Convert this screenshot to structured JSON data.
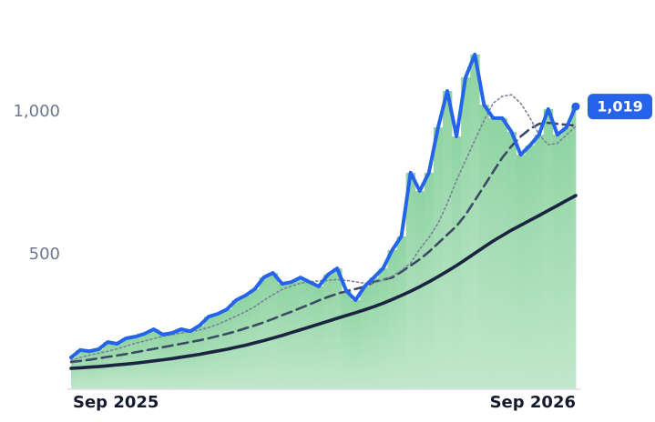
{
  "chart_data": {
    "type": "line",
    "categories": [
      "Sep 2025",
      null,
      null,
      null,
      null,
      null,
      null,
      null,
      null,
      null,
      null,
      null,
      null,
      null,
      null,
      null,
      null,
      null,
      null,
      null,
      null,
      null,
      null,
      null,
      null,
      null,
      null,
      null,
      null,
      null,
      null,
      null,
      null,
      null,
      null,
      null,
      null,
      null,
      null,
      null,
      null,
      null,
      null,
      null,
      null,
      null,
      null,
      null,
      null,
      null,
      null,
      null,
      null,
      null,
      null,
      "Sep 2026"
    ],
    "ylim": [
      30,
      1260
    ],
    "yticks": [
      {
        "value": 1000,
        "label": "1,000"
      },
      500
    ],
    "area_color": "#8fd4a2",
    "series": [
      {
        "color": "#2563eb",
        "style": "solid",
        "width": 4,
        "area": true,
        "values": [
          140,
          166,
          162,
          169,
          194,
          188,
          207,
          213,
          223,
          239,
          220,
          226,
          239,
          232,
          252,
          283,
          293,
          309,
          341,
          357,
          379,
          420,
          436,
          398,
          404,
          420,
          404,
          389,
          430,
          452,
          373,
          341,
          389,
          420,
          452,
          516,
          564,
          787,
          723,
          787,
          946,
          1073,
          914,
          1121,
          1201,
          1025,
          978,
          978,
          930,
          850,
          882,
          920,
          1010,
          920,
          946,
          1019
        ],
        "value_labels": [
          null,
          null,
          null,
          null,
          null,
          null,
          null,
          null,
          null,
          null,
          null,
          null,
          null,
          null,
          null,
          null,
          null,
          null,
          null,
          null,
          null,
          null,
          null,
          null,
          null,
          null,
          null,
          null,
          null,
          null,
          null,
          null,
          null,
          null,
          null,
          null,
          null,
          null,
          null,
          null,
          null,
          null,
          null,
          null,
          null,
          null,
          null,
          null,
          null,
          null,
          null,
          null,
          null,
          null,
          null,
          "1,019"
        ]
      },
      {
        "color": "#7a8099",
        "style": "dotted",
        "width": 1.6,
        "values": [
          130,
          140,
          148,
          155,
          162,
          170,
          180,
          190,
          198,
          206,
          214,
          220,
          226,
          230,
          236,
          245,
          256,
          270,
          285,
          300,
          318,
          340,
          360,
          378,
          390,
          400,
          405,
          408,
          410,
          413,
          410,
          405,
          400,
          402,
          410,
          425,
          445,
          470,
          520,
          560,
          610,
          680,
          760,
          830,
          900,
          970,
          1030,
          1055,
          1060,
          1030,
          980,
          920,
          885,
          890,
          920,
          950
        ]
      },
      {
        "color": "#3d4a66",
        "style": "dashed",
        "width": 2.6,
        "values": [
          124,
          128,
          132,
          137,
          142,
          147,
          152,
          158,
          164,
          170,
          176,
          182,
          188,
          194,
          200,
          207,
          215,
          223,
          232,
          242,
          252,
          263,
          275,
          288,
          300,
          313,
          326,
          340,
          352,
          363,
          372,
          380,
          388,
          405,
          412,
          420,
          440,
          462,
          484,
          510,
          540,
          570,
          600,
          640,
          690,
          740,
          790,
          840,
          880,
          914,
          940,
          958,
          962,
          958,
          955,
          952
        ]
      },
      {
        "color": "#1b2440",
        "style": "solid",
        "width": 3.6,
        "values": [
          102,
          104,
          106,
          108,
          111,
          114,
          117,
          120,
          124,
          128,
          132,
          136,
          141,
          146,
          151,
          157,
          163,
          169,
          176,
          183,
          191,
          199,
          208,
          217,
          227,
          237,
          247,
          257,
          267,
          277,
          287,
          297,
          307,
          318,
          330,
          343,
          357,
          372,
          388,
          405,
          423,
          442,
          462,
          483,
          505,
          527,
          548,
          567,
          586,
          603,
          620,
          637,
          655,
          672,
          690,
          707
        ]
      }
    ]
  }
}
